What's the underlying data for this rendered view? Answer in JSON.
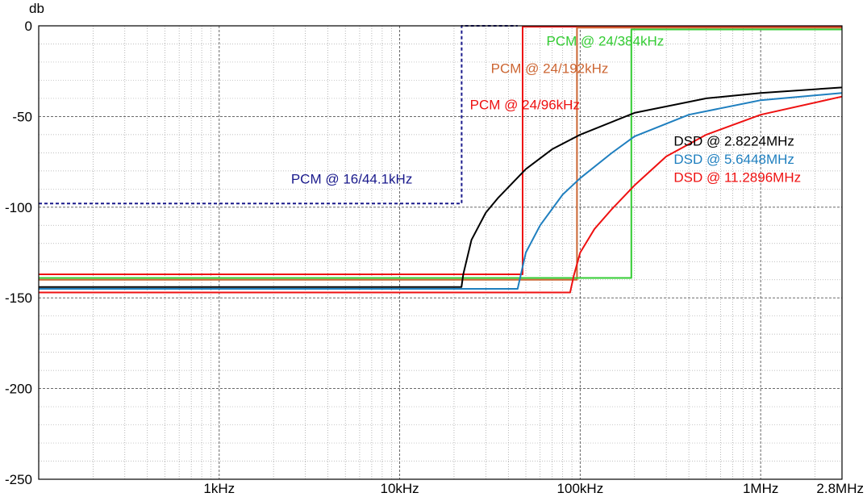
{
  "chart_data": {
    "type": "line",
    "ylabel": "db",
    "xscale": "log",
    "xlim": [
      100,
      2822400
    ],
    "ylim": [
      -250,
      0
    ],
    "grid": true,
    "y_ticks": [
      {
        "value": 0,
        "label": "0"
      },
      {
        "value": -50,
        "label": "-50"
      },
      {
        "value": -100,
        "label": "-100"
      },
      {
        "value": -150,
        "label": "-150"
      },
      {
        "value": -200,
        "label": "-200"
      },
      {
        "value": -250,
        "label": "-250"
      }
    ],
    "x_ticks": [
      {
        "value": 1000,
        "label": "1kHz"
      },
      {
        "value": 10000,
        "label": "10kHz"
      },
      {
        "value": 100000,
        "label": "100kHz"
      },
      {
        "value": 1000000,
        "label": "1MHz"
      },
      {
        "value": 2822400,
        "label": "2.8MHz"
      }
    ],
    "series": [
      {
        "name": "PCM @ 16/44.1kHz",
        "color": "#1a1a8c",
        "dashed": true,
        "points": [
          [
            100,
            -98
          ],
          [
            22050,
            -98
          ],
          [
            22050,
            0
          ],
          [
            45000,
            0
          ]
        ]
      },
      {
        "name": "PCM @ 24/96kHz",
        "color": "#ee1111",
        "dashed": false,
        "points": [
          [
            100,
            -137
          ],
          [
            48000,
            -137
          ],
          [
            48000,
            -0.5
          ],
          [
            2822400,
            -0.5
          ]
        ]
      },
      {
        "name": "PCM @ 24/192kHz",
        "color": "#cc6633",
        "dashed": false,
        "points": [
          [
            100,
            -140
          ],
          [
            96000,
            -140
          ],
          [
            96000,
            -1
          ],
          [
            2822400,
            -1
          ]
        ]
      },
      {
        "name": "PCM @ 24/384kHz",
        "color": "#33cc33",
        "dashed": false,
        "points": [
          [
            100,
            -139
          ],
          [
            192000,
            -139
          ],
          [
            192000,
            -2
          ],
          [
            2822400,
            -2
          ]
        ]
      },
      {
        "name": "DSD @ 2.8224MHz",
        "color": "#000000",
        "dashed": false,
        "points": [
          [
            100,
            -144
          ],
          [
            22000,
            -144
          ],
          [
            22500,
            -137
          ],
          [
            25000,
            -118
          ],
          [
            30000,
            -103
          ],
          [
            35000,
            -95
          ],
          [
            50000,
            -79
          ],
          [
            70000,
            -68
          ],
          [
            100000,
            -60
          ],
          [
            200000,
            -48
          ],
          [
            500000,
            -40
          ],
          [
            1000000,
            -37
          ],
          [
            2822400,
            -34
          ]
        ]
      },
      {
        "name": "DSD @ 5.6448MHz",
        "color": "#1f7fbf",
        "dashed": false,
        "points": [
          [
            100,
            -145
          ],
          [
            45000,
            -145
          ],
          [
            50000,
            -125
          ],
          [
            60000,
            -110
          ],
          [
            80000,
            -93
          ],
          [
            100000,
            -84
          ],
          [
            150000,
            -70
          ],
          [
            200000,
            -61
          ],
          [
            400000,
            -49
          ],
          [
            1000000,
            -41
          ],
          [
            2822400,
            -37
          ]
        ]
      },
      {
        "name": "DSD @ 11.2896MHz",
        "color": "#ee1111",
        "dashed": false,
        "points": [
          [
            100,
            -147
          ],
          [
            88000,
            -147
          ],
          [
            92000,
            -138
          ],
          [
            100000,
            -125
          ],
          [
            120000,
            -112
          ],
          [
            150000,
            -101
          ],
          [
            200000,
            -88
          ],
          [
            300000,
            -72
          ],
          [
            500000,
            -60
          ],
          [
            1000000,
            -49
          ],
          [
            2822400,
            -39
          ]
        ]
      }
    ],
    "annotations": [
      {
        "text": "PCM @ 16/44.1kHz",
        "color": "#1a1a8c",
        "x": 2500,
        "y": -87
      },
      {
        "text": "PCM @ 24/96kHz",
        "color": "#ee1111",
        "x": 24500,
        "y": -46
      },
      {
        "text": "PCM @ 24/192kHz",
        "color": "#cc6633",
        "x": 32000,
        "y": -26
      },
      {
        "text": "PCM @ 24/384kHz",
        "color": "#33cc33",
        "x": 65000,
        "y": -11
      },
      {
        "text": "DSD @ 2.8224MHz",
        "color": "#000000",
        "x": 330000,
        "y": -66
      },
      {
        "text": "DSD @ 5.6448MHz",
        "color": "#1f7fbf",
        "x": 330000,
        "y": -76
      },
      {
        "text": "DSD @ 11.2896MHz",
        "color": "#ee1111",
        "x": 330000,
        "y": -86
      }
    ]
  }
}
